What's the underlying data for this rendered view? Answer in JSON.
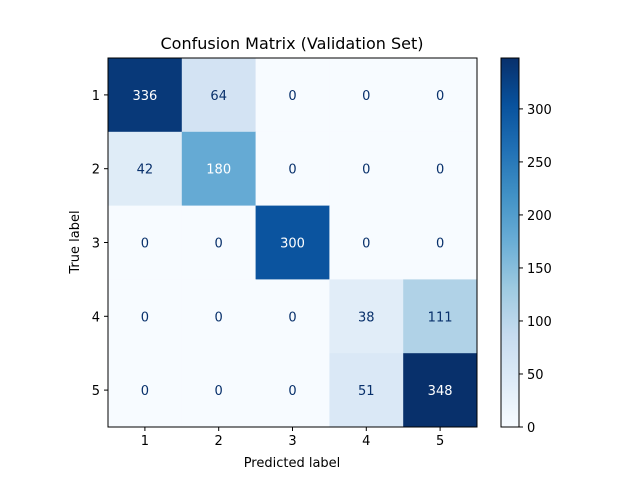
{
  "chart_data": {
    "type": "heatmap",
    "title": "Confusion Matrix (Validation Set)",
    "xlabel": "Predicted label",
    "ylabel": "True label",
    "x_categories": [
      "1",
      "2",
      "3",
      "4",
      "5"
    ],
    "y_categories": [
      "1",
      "2",
      "3",
      "4",
      "5"
    ],
    "values": [
      [
        336,
        64,
        0,
        0,
        0
      ],
      [
        42,
        180,
        0,
        0,
        0
      ],
      [
        0,
        0,
        300,
        0,
        0
      ],
      [
        0,
        0,
        0,
        38,
        111
      ],
      [
        0,
        0,
        0,
        51,
        348
      ]
    ],
    "colorscale": "Blues",
    "vmin": 0,
    "vmax": 348,
    "colorbar_ticks": [
      0,
      50,
      100,
      150,
      200,
      250,
      300
    ]
  }
}
